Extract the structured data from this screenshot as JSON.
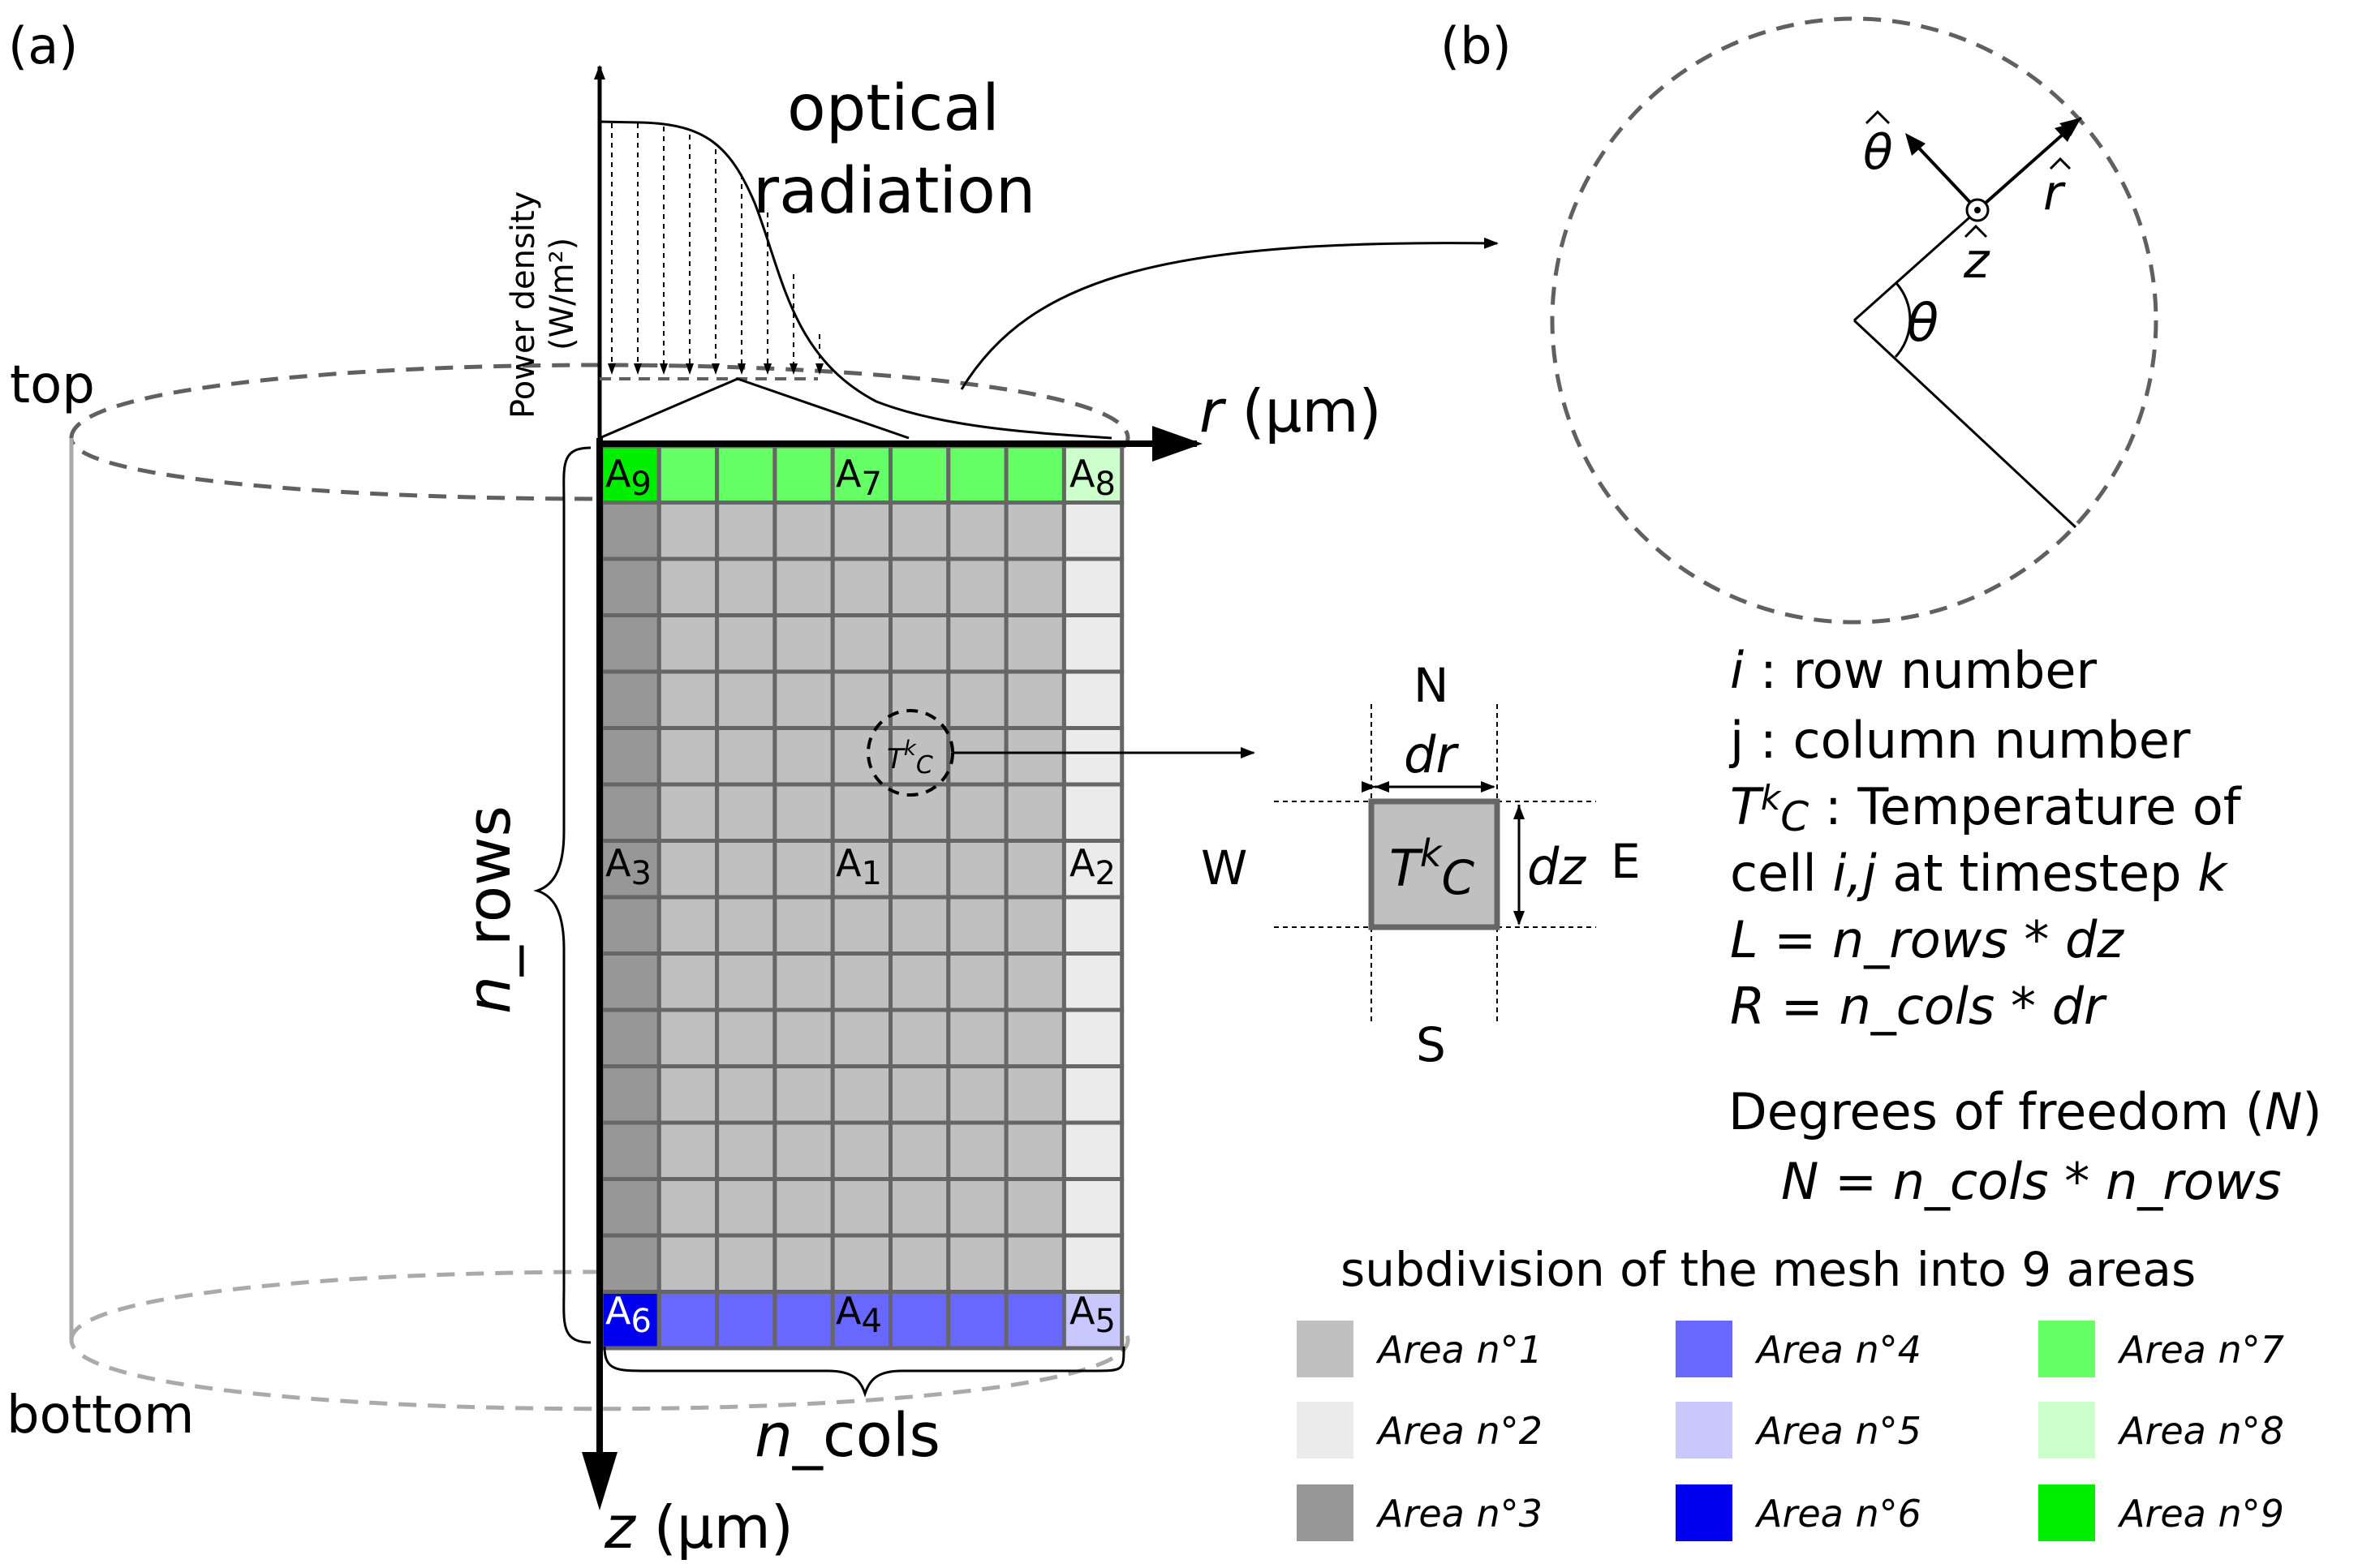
{
  "panel_a": {
    "label": "(a)",
    "top": "top",
    "bottom": "bottom",
    "y_axis_label_line1": "Power density",
    "y_axis_label_line2": "(W/m²)",
    "optical_line1": "optical",
    "optical_line2": "radiation",
    "r_axis_var": "r",
    "r_axis_unit": " (µm)",
    "z_axis_var": "z",
    "z_axis_unit": " (µm)",
    "n_rows_n": "n",
    "n_rows_rest": "_rows",
    "n_cols_n": "n",
    "n_cols_rest": "_cols",
    "mesh": {
      "columns": 9,
      "rows": 16
    },
    "area_labels": [
      {
        "base": "A",
        "sub": "9"
      },
      {
        "base": "A",
        "sub": "7"
      },
      {
        "base": "A",
        "sub": "8"
      },
      {
        "base": "A",
        "sub": "3"
      },
      {
        "base": "A",
        "sub": "1"
      },
      {
        "base": "A",
        "sub": "2"
      },
      {
        "base": "A",
        "sub": "6"
      },
      {
        "base": "A",
        "sub": "4"
      },
      {
        "base": "A",
        "sub": "5"
      }
    ],
    "zoom_cell": {
      "T": "T",
      "k": "k",
      "C": "C"
    }
  },
  "panel_b": {
    "label": "(b)",
    "theta_hat": "θ",
    "r_hat": "r",
    "z_hat": "z",
    "theta": "θ"
  },
  "cell": {
    "N": "N",
    "S": "S",
    "W": "W",
    "E": "E",
    "dr": "dr",
    "dz": "dz",
    "T": "T",
    "k": "k",
    "C": "C"
  },
  "legend_text": {
    "i_var": "i",
    "i_desc": " : row number",
    "j_line": "j : column number",
    "T": "T",
    "k": "k",
    "C": "C",
    "t_desc": " : Temperature of",
    "cell_a": "cell ",
    "cell_ij": "i,j",
    "cell_b": " at timestep ",
    "cell_k": "k",
    "L_eq": "L = n_rows * dz",
    "R_eq": "R = n_cols * dr",
    "dof_a": "Degrees of freedom (",
    "dof_N": "N",
    "dof_b": ")",
    "N_eq": "N = n_cols * n_rows"
  },
  "subdivision": {
    "title": "subdivision of the mesh into 9 areas",
    "areas": [
      {
        "label": "Area n°1",
        "color": "#c0c0c0"
      },
      {
        "label": "Area n°2",
        "color": "#ebebeb"
      },
      {
        "label": "Area n°3",
        "color": "#979797"
      },
      {
        "label": "Area n°4",
        "color": "#6868ff"
      },
      {
        "label": "Area n°5",
        "color": "#c8c8ff"
      },
      {
        "label": "Area n°6",
        "color": "#0000ee"
      },
      {
        "label": "Area n°7",
        "color": "#66ff66"
      },
      {
        "label": "Area n°8",
        "color": "#ccffcc"
      },
      {
        "label": "Area n°9",
        "color": "#00ee00"
      }
    ]
  },
  "colors": {
    "area1": "#c0c0c0",
    "area2": "#ebebeb",
    "area3": "#979797",
    "area4": "#6868ff",
    "area5": "#c8c8ff",
    "area6": "#0000ee",
    "area7": "#66ff66",
    "area8": "#ccffcc",
    "area9": "#00ee00",
    "grid": "#666666",
    "dashed": "#606060"
  }
}
